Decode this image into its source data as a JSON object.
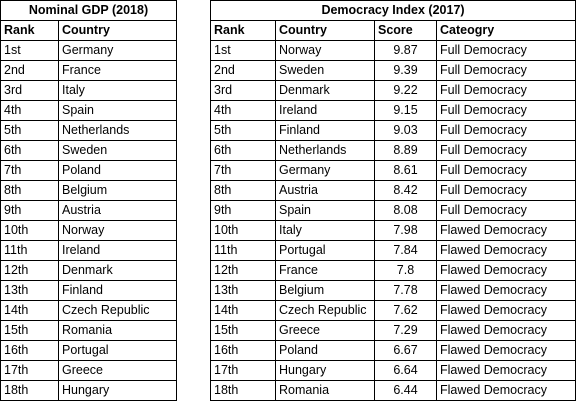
{
  "gdp": {
    "title": "Nominal GDP (2018)",
    "headers": [
      "Rank",
      "Country"
    ],
    "rows": [
      [
        "1st",
        "Germany"
      ],
      [
        "2nd",
        "France"
      ],
      [
        "3rd",
        "Italy"
      ],
      [
        "4th",
        "Spain"
      ],
      [
        "5th",
        "Netherlands"
      ],
      [
        "6th",
        "Sweden"
      ],
      [
        "7th",
        "Poland"
      ],
      [
        "8th",
        "Belgium"
      ],
      [
        "9th",
        "Austria"
      ],
      [
        "10th",
        "Norway"
      ],
      [
        "11th",
        "Ireland"
      ],
      [
        "12th",
        "Denmark"
      ],
      [
        "13th",
        "Finland"
      ],
      [
        "14th",
        "Czech Republic"
      ],
      [
        "15th",
        "Romania"
      ],
      [
        "16th",
        "Portugal"
      ],
      [
        "17th",
        "Greece"
      ],
      [
        "18th",
        "Hungary"
      ]
    ]
  },
  "democracy": {
    "title": "Democracy Index (2017)",
    "headers": [
      "Rank",
      "Country",
      "Score",
      "Cateogry"
    ],
    "rows": [
      [
        "1st",
        "Norway",
        "9.87",
        "Full Democracy"
      ],
      [
        "2nd",
        "Sweden",
        "9.39",
        "Full Democracy"
      ],
      [
        "3rd",
        "Denmark",
        "9.22",
        "Full Democracy"
      ],
      [
        "4th",
        "Ireland",
        "9.15",
        "Full Democracy"
      ],
      [
        "5th",
        "Finland",
        "9.03",
        "Full Democracy"
      ],
      [
        "6th",
        "Netherlands",
        "8.89",
        "Full Democracy"
      ],
      [
        "7th",
        "Germany",
        "8.61",
        "Full Democracy"
      ],
      [
        "8th",
        "Austria",
        "8.42",
        "Full Democracy"
      ],
      [
        "9th",
        "Spain",
        "8.08",
        "Full Democracy"
      ],
      [
        "10th",
        "Italy",
        "7.98",
        "Flawed Democracy"
      ],
      [
        "11th",
        "Portugal",
        "7.84",
        "Flawed Democracy"
      ],
      [
        "12th",
        "France",
        "7.8",
        "Flawed Democracy"
      ],
      [
        "13th",
        "Belgium",
        "7.78",
        "Flawed Democracy"
      ],
      [
        "14th",
        "Czech Republic",
        "7.62",
        "Flawed Democracy"
      ],
      [
        "15th",
        "Greece",
        "7.29",
        "Flawed Democracy"
      ],
      [
        "16th",
        "Poland",
        "6.67",
        "Flawed Democracy"
      ],
      [
        "17th",
        "Hungary",
        "6.64",
        "Flawed Democracy"
      ],
      [
        "18th",
        "Romania",
        "6.44",
        "Flawed Democracy"
      ]
    ]
  }
}
